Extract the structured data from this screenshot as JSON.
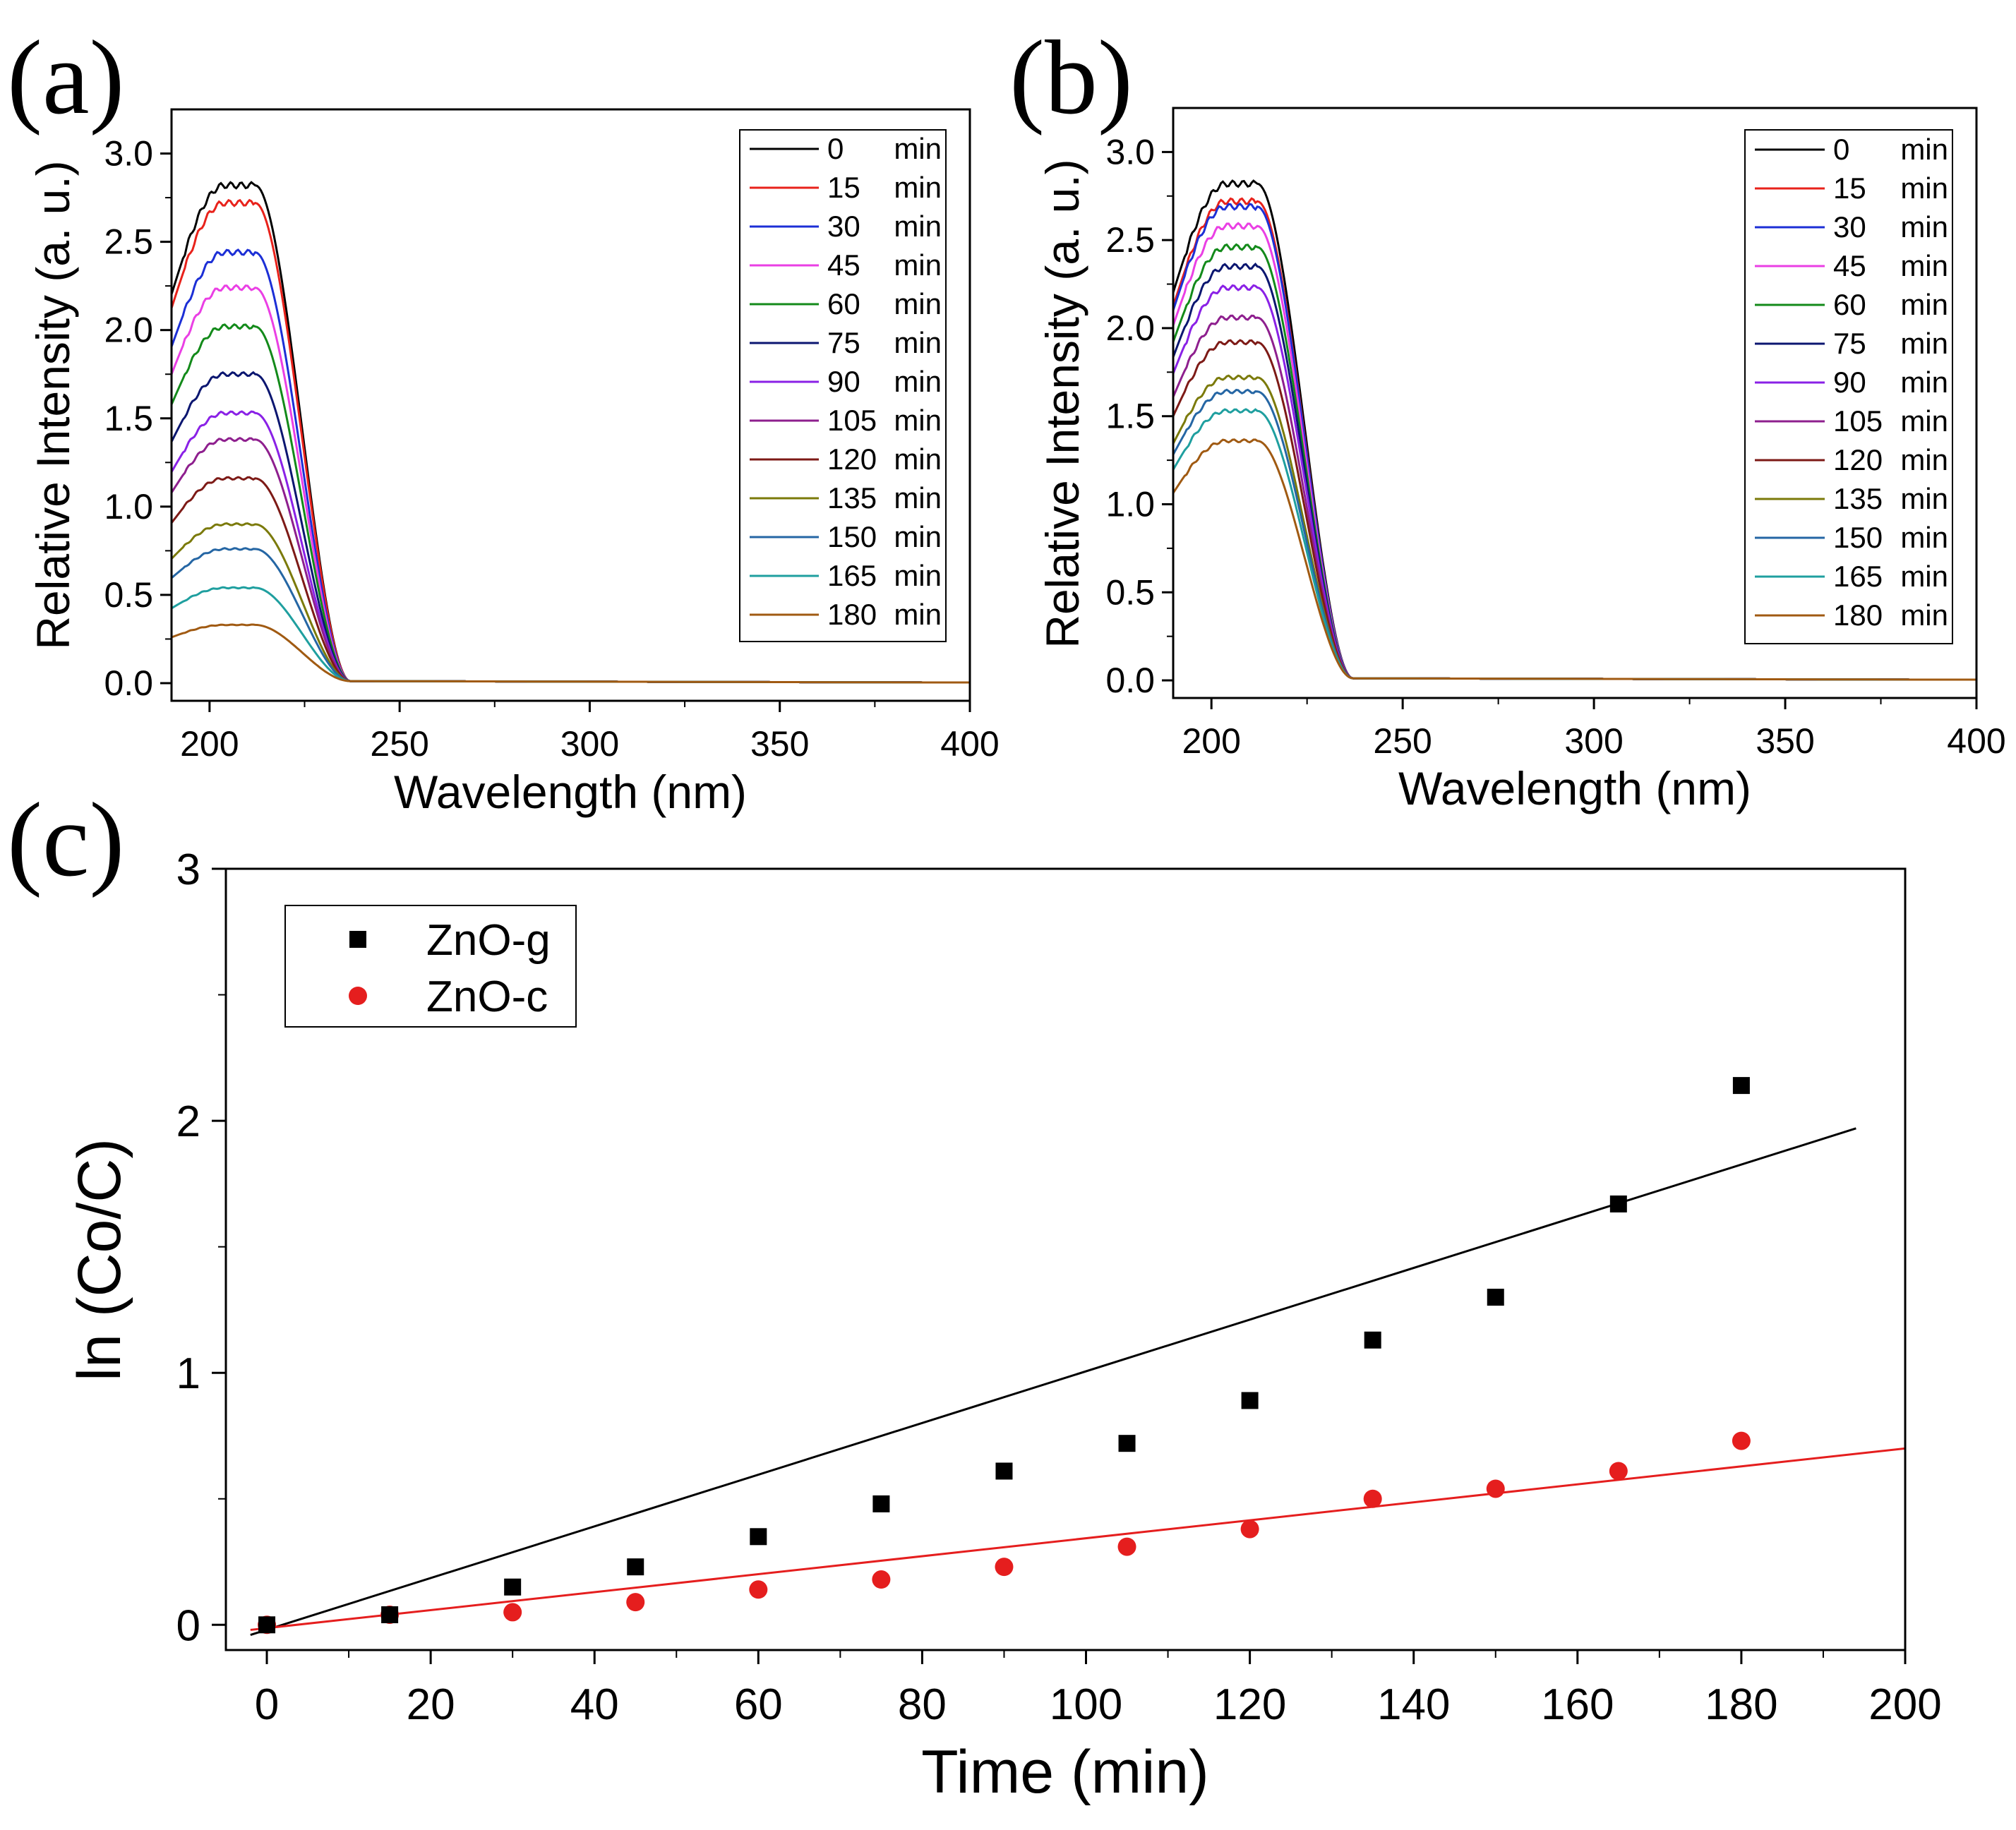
{
  "chart_data": [
    {
      "id": "a",
      "type": "line",
      "panel_label": "(a)",
      "xlabel": "Wavelength (nm)",
      "ylabel": "Relative Intensity (a. u.)",
      "xlim": [
        190,
        400
      ],
      "ylim": [
        -0.1,
        3.25
      ],
      "xticks": [
        200,
        250,
        300,
        350,
        400
      ],
      "yticks": [
        0.0,
        0.5,
        1.0,
        1.5,
        2.0,
        2.5,
        3.0
      ],
      "xtick_labels": [
        "200",
        "250",
        "300",
        "350",
        "400"
      ],
      "ytick_labels": [
        "0.0",
        "0.5",
        "1.0",
        "1.5",
        "2.0",
        "2.5",
        "3.0"
      ],
      "legend_position": "top-right",
      "series": [
        {
          "name": "0",
          "unit": "min",
          "peak": 2.82,
          "color": "#000000"
        },
        {
          "name": "15",
          "unit": "min",
          "peak": 2.72,
          "color": "#e8221b"
        },
        {
          "name": "30",
          "unit": "min",
          "peak": 2.44,
          "color": "#1c2fd6"
        },
        {
          "name": "45",
          "unit": "min",
          "peak": 2.24,
          "color": "#ea3fe4"
        },
        {
          "name": "60",
          "unit": "min",
          "peak": 2.02,
          "color": "#138a1a"
        },
        {
          "name": "75",
          "unit": "min",
          "peak": 1.75,
          "color": "#0b1670"
        },
        {
          "name": "90",
          "unit": "min",
          "peak": 1.53,
          "color": "#8a21e6"
        },
        {
          "name": "105",
          "unit": "min",
          "peak": 1.38,
          "color": "#8e1f8e"
        },
        {
          "name": "120",
          "unit": "min",
          "peak": 1.16,
          "color": "#7d1a16"
        },
        {
          "name": "135",
          "unit": "min",
          "peak": 0.9,
          "color": "#7b7a0a"
        },
        {
          "name": "150",
          "unit": "min",
          "peak": 0.76,
          "color": "#2566a4"
        },
        {
          "name": "165",
          "unit": "min",
          "peak": 0.54,
          "color": "#1f9f9f"
        },
        {
          "name": "180",
          "unit": "min",
          "peak": 0.33,
          "color": "#a05a12"
        }
      ]
    },
    {
      "id": "b",
      "type": "line",
      "panel_label": "(b)",
      "xlabel": "Wavelength (nm)",
      "ylabel": "Relative Intensity (a. u.)",
      "xlim": [
        190,
        400
      ],
      "ylim": [
        -0.1,
        3.25
      ],
      "xticks": [
        200,
        250,
        300,
        350,
        400
      ],
      "yticks": [
        0.0,
        0.5,
        1.0,
        1.5,
        2.0,
        2.5,
        3.0
      ],
      "xtick_labels": [
        "200",
        "250",
        "300",
        "350",
        "400"
      ],
      "ytick_labels": [
        "0.0",
        "0.5",
        "1.0",
        "1.5",
        "2.0",
        "2.5",
        "3.0"
      ],
      "legend_position": "top-right",
      "series": [
        {
          "name": "0",
          "unit": "min",
          "peak": 2.82,
          "color": "#000000"
        },
        {
          "name": "15",
          "unit": "min",
          "peak": 2.72,
          "color": "#e8221b"
        },
        {
          "name": "30",
          "unit": "min",
          "peak": 2.69,
          "color": "#1c2fd6"
        },
        {
          "name": "45",
          "unit": "min",
          "peak": 2.58,
          "color": "#ea3fe4"
        },
        {
          "name": "60",
          "unit": "min",
          "peak": 2.46,
          "color": "#138a1a"
        },
        {
          "name": "75",
          "unit": "min",
          "peak": 2.35,
          "color": "#0b1670"
        },
        {
          "name": "90",
          "unit": "min",
          "peak": 2.23,
          "color": "#8a21e6"
        },
        {
          "name": "105",
          "unit": "min",
          "peak": 2.06,
          "color": "#8e1f8e"
        },
        {
          "name": "120",
          "unit": "min",
          "peak": 1.92,
          "color": "#7d1a16"
        },
        {
          "name": "135",
          "unit": "min",
          "peak": 1.72,
          "color": "#7b7a0a"
        },
        {
          "name": "150",
          "unit": "min",
          "peak": 1.64,
          "color": "#2566a4"
        },
        {
          "name": "165",
          "unit": "min",
          "peak": 1.53,
          "color": "#1f9f9f"
        },
        {
          "name": "180",
          "unit": "min",
          "peak": 1.36,
          "color": "#a05a12"
        }
      ]
    },
    {
      "id": "c",
      "type": "scatter",
      "panel_label": "(c)",
      "xlabel": "Time (min)",
      "ylabel": "ln (Co/C)",
      "xlim": [
        -5,
        200
      ],
      "ylim": [
        -0.1,
        3
      ],
      "xticks": [
        0,
        20,
        40,
        60,
        80,
        100,
        120,
        140,
        160,
        180,
        200
      ],
      "yticks": [
        0,
        1,
        2,
        3
      ],
      "xtick_labels": [
        "0",
        "20",
        "40",
        "60",
        "80",
        "100",
        "120",
        "140",
        "160",
        "180",
        "200"
      ],
      "ytick_labels": [
        "0",
        "1",
        "2",
        "3"
      ],
      "legend_position": "top-left",
      "x": [
        0,
        15,
        30,
        45,
        60,
        75,
        90,
        105,
        120,
        135,
        150,
        165,
        180
      ],
      "series": [
        {
          "name": "ZnO-g",
          "marker": "square",
          "color": "#000000",
          "values": [
            0.0,
            0.04,
            0.15,
            0.23,
            0.35,
            0.48,
            0.61,
            0.72,
            0.89,
            1.13,
            1.3,
            1.67,
            2.14
          ],
          "fit": {
            "x": [
              -2,
              194
            ],
            "y": [
              -0.04,
              1.97
            ]
          }
        },
        {
          "name": "ZnO-c",
          "marker": "circle",
          "color": "#e51e1e",
          "values": [
            0.0,
            0.04,
            0.05,
            0.09,
            0.14,
            0.18,
            0.23,
            0.31,
            0.38,
            0.5,
            0.54,
            0.61,
            0.73
          ],
          "fit": {
            "x": [
              -2,
              200
            ],
            "y": [
              -0.02,
              0.7
            ]
          }
        }
      ]
    }
  ]
}
